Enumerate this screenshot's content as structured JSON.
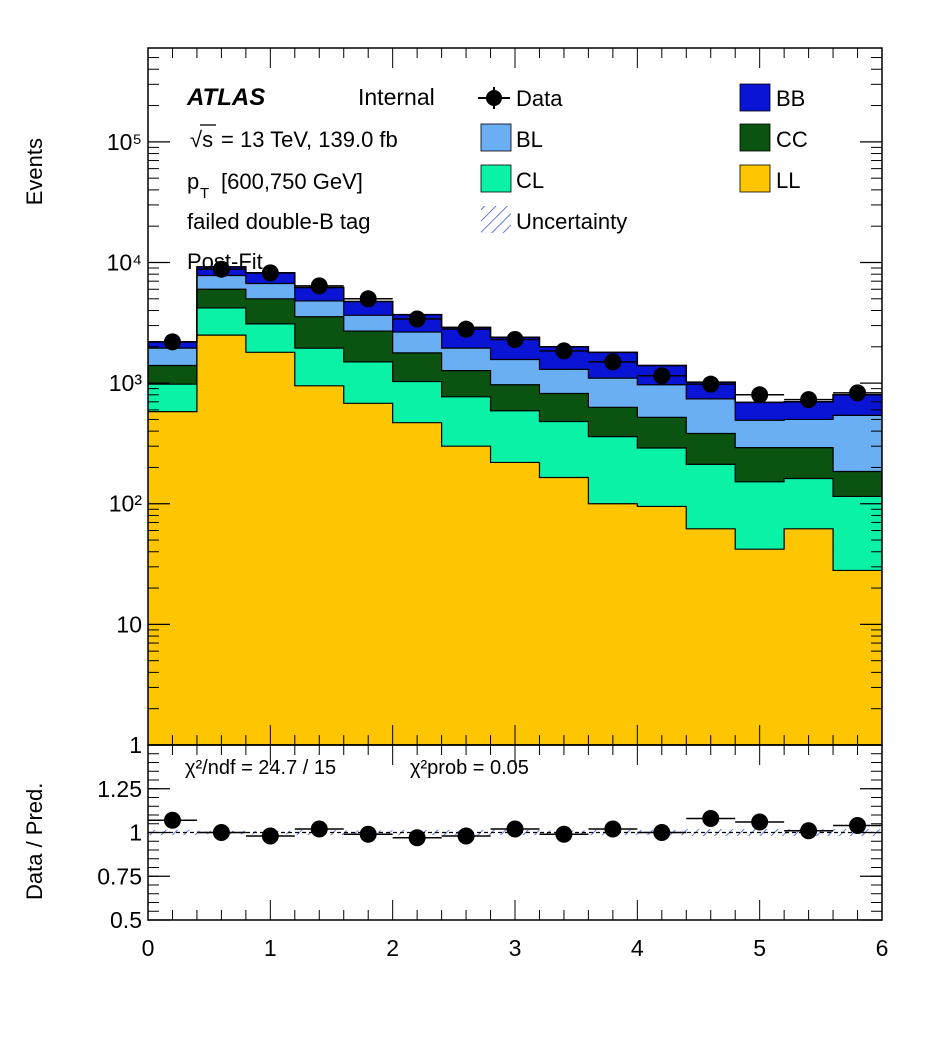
{
  "figure": {
    "label": {
      "experiment": "ATLAS",
      "status": "Internal",
      "energy": "= 13 TeV, 139.0 fb",
      "sqrt_symbol": "√s",
      "pt_prefix": "p",
      "pt_sub": "T",
      "pt_range": "[600,750 GeV]",
      "selection": "failed double-B tag",
      "stage": "Post-Fit"
    },
    "legend": {
      "placement": "top-right",
      "entries": [
        {
          "label": "Data",
          "style": "marker"
        },
        {
          "label": "BL",
          "style": "fill",
          "color": "#6aaef4"
        },
        {
          "label": "CL",
          "style": "fill",
          "color": "#0af2a6"
        },
        {
          "label": "Uncertainty",
          "style": "hatch",
          "color": "#3050c8"
        },
        {
          "label": "BB",
          "style": "fill",
          "color": "#0a14d4"
        },
        {
          "label": "CC",
          "style": "fill",
          "color": "#0b5311"
        },
        {
          "label": "LL",
          "style": "fill",
          "color": "#fdc600"
        }
      ]
    },
    "ratio_text": {
      "chi2_ndf": "χ²/ndf = 24.7 / 15",
      "chi2_prob": "χ²prob = 0.05"
    }
  },
  "chart_data": [
    {
      "type": "area",
      "stacked": true,
      "log_y": true,
      "ylabel": "Events",
      "xlim": [
        0,
        6
      ],
      "ylim": [
        1,
        600000
      ],
      "y_tick_labels": [
        "1",
        "10",
        "10²",
        "10³",
        "10⁴",
        "10⁵"
      ],
      "bin_edges": [
        0,
        0.4,
        0.8,
        1.2,
        1.6,
        2.0,
        2.4,
        2.8,
        3.2,
        3.6,
        4.0,
        4.4,
        4.8,
        5.2,
        5.6,
        6.0
      ],
      "series": [
        {
          "name": "LL",
          "color": "#fdc600",
          "values": [
            580,
            2500,
            1800,
            950,
            680,
            470,
            300,
            220,
            165,
            100,
            95,
            62,
            42,
            62,
            28
          ]
        },
        {
          "name": "CL",
          "color": "#0af2a6",
          "values": [
            400,
            1700,
            1300,
            1000,
            820,
            560,
            470,
            370,
            315,
            260,
            195,
            150,
            110,
            100,
            87
          ]
        },
        {
          "name": "CC",
          "color": "#0b5311",
          "values": [
            420,
            1800,
            1900,
            1600,
            1200,
            750,
            500,
            380,
            340,
            270,
            230,
            170,
            140,
            130,
            70
          ]
        },
        {
          "name": "BL",
          "color": "#6aaef4",
          "values": [
            550,
            1800,
            1700,
            1250,
            950,
            870,
            680,
            600,
            480,
            470,
            450,
            358,
            200,
            208,
            355
          ]
        },
        {
          "name": "BB",
          "color": "#0a14d4",
          "values": [
            250,
            1400,
            1500,
            1400,
            1100,
            1050,
            950,
            830,
            700,
            700,
            430,
            280,
            200,
            200,
            260
          ]
        }
      ],
      "data": {
        "name": "Data",
        "x": [
          0.2,
          0.6,
          1.0,
          1.4,
          1.8,
          2.2,
          2.6,
          3.0,
          3.4,
          3.8,
          4.2,
          4.6,
          5.0,
          5.4,
          5.8
        ],
        "y": [
          2200,
          8800,
          8200,
          6400,
          5000,
          3400,
          2800,
          2300,
          1850,
          1500,
          1150,
          980,
          800,
          730,
          830
        ]
      }
    },
    {
      "type": "scatter",
      "ylabel": "Data / Pred.",
      "xlim": [
        0,
        6
      ],
      "ylim": [
        0.5,
        1.5
      ],
      "x_tick_labels": [
        "0",
        "1",
        "2",
        "3",
        "4",
        "5",
        "6"
      ],
      "y_tick_labels": [
        "0.5",
        "0.75",
        "1",
        "1.25"
      ],
      "bin_edges": [
        0,
        0.4,
        0.8,
        1.2,
        1.6,
        2.0,
        2.4,
        2.8,
        3.2,
        3.6,
        4.0,
        4.4,
        4.8,
        5.2,
        5.6,
        6.0
      ],
      "reference_line": 1.0,
      "data": {
        "x": [
          0.2,
          0.6,
          1.0,
          1.4,
          1.8,
          2.2,
          2.6,
          3.0,
          3.4,
          3.8,
          4.2,
          4.6,
          5.0,
          5.4,
          5.8
        ],
        "y": [
          1.07,
          1.0,
          0.98,
          1.02,
          0.99,
          0.97,
          0.98,
          1.02,
          0.99,
          1.02,
          1.0,
          1.08,
          1.06,
          1.01,
          1.04
        ]
      },
      "uncertainty_band": [
        0.015,
        0.01,
        0.01,
        0.015,
        0.012,
        0.015,
        0.015,
        0.015,
        0.012,
        0.015,
        0.015,
        0.02,
        0.02,
        0.02,
        0.02
      ]
    }
  ]
}
